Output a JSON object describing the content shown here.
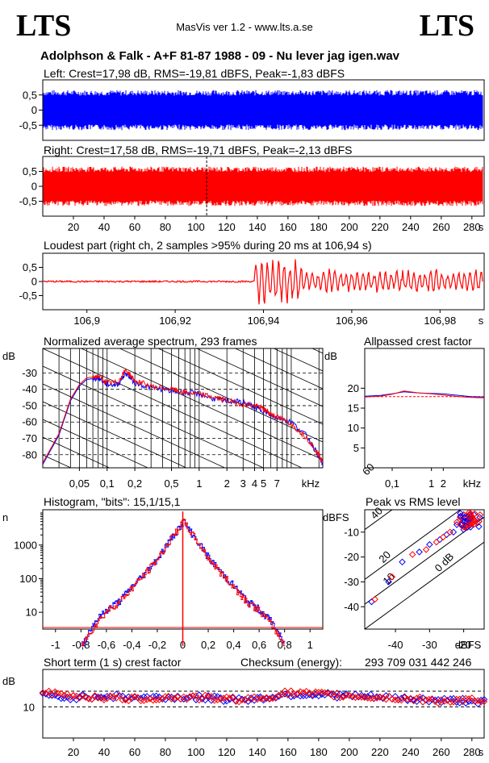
{
  "header": {
    "logo_left": "LTS",
    "logo_right": "LTS",
    "app_title": "MasVis ver 1.2 - www.lts.a.se",
    "file_title": "Adolphson & Falk - A+F 81-87 1988 - 09 - Nu lever jag igen.wav"
  },
  "colors": {
    "left": "#0000ff",
    "right": "#ff0000",
    "axis": "#000000"
  },
  "chart_data": [
    {
      "type": "area",
      "id": "left-waveform",
      "title": "Left: Crest=17,98 dB, RMS=-19,81 dBFS, Peak=-1,83 dBFS",
      "ylim": [
        -1,
        1
      ],
      "yticks": [
        "0,5",
        "0",
        "-0,5"
      ],
      "ytick_values": [
        0.5,
        0,
        -0.5
      ],
      "xlim": [
        0,
        288
      ],
      "color": "#0000ff"
    },
    {
      "type": "area",
      "id": "right-waveform",
      "title": "Right: Crest=17,58 dB, RMS=-19,71 dBFS, Peak=-2,13 dBFS",
      "ylim": [
        -1,
        1
      ],
      "yticks": [
        "0,5",
        "0",
        "-0,5"
      ],
      "ytick_values": [
        0.5,
        0,
        -0.5
      ],
      "xlim": [
        0,
        288
      ],
      "marker_x": 106.94,
      "xticks": [
        "20",
        "40",
        "60",
        "80",
        "100",
        "120",
        "140",
        "160",
        "180",
        "200",
        "220",
        "240",
        "260",
        "280",
        "s"
      ],
      "xtick_values": [
        20,
        40,
        60,
        80,
        100,
        120,
        140,
        160,
        180,
        200,
        220,
        240,
        260,
        280
      ],
      "color": "#ff0000"
    },
    {
      "type": "line",
      "id": "loudest-part",
      "title": "Loudest part (right ch, 2 samples >95% during 20 ms at 106,94 s)",
      "xlim": [
        106.89,
        106.99
      ],
      "ylim": [
        -1,
        1
      ],
      "yticks": [
        "0,5",
        "0",
        "-0,5"
      ],
      "ytick_values": [
        0.5,
        0,
        -0.5
      ],
      "xticks": [
        "106,9",
        "106,92",
        "106,94",
        "106,96",
        "106,98",
        "s"
      ],
      "xtick_values": [
        106.9,
        106.92,
        106.94,
        106.96,
        106.98
      ],
      "onset_x": 106.938,
      "color": "#ff0000"
    },
    {
      "type": "line",
      "id": "spectrum",
      "title": "Normalized average spectrum, 293 frames",
      "ylabel": "dB",
      "yticks": [
        "-30",
        "-40",
        "-50",
        "-60",
        "-70",
        "-80"
      ],
      "ytick_values": [
        -30,
        -40,
        -50,
        -60,
        -70,
        -80
      ],
      "ylim": [
        -88,
        -15
      ],
      "xlim_khz": [
        0.02,
        22
      ],
      "xticks": [
        "0,05",
        "0,1",
        "0,2",
        "0,5",
        "1",
        "2",
        "3",
        "4",
        "5",
        "7",
        "kHz"
      ],
      "xtick_values": [
        0.05,
        0.1,
        0.2,
        0.5,
        1,
        2,
        3,
        4,
        5,
        7
      ],
      "series": [
        {
          "color": "#0000ff",
          "x": [
            0.02,
            0.03,
            0.04,
            0.05,
            0.06,
            0.08,
            0.1,
            0.13,
            0.16,
            0.2,
            0.3,
            0.5,
            0.7,
            1,
            1.5,
            2,
            3,
            4,
            5,
            6,
            7,
            10,
            15,
            20,
            22
          ],
          "y": [
            -86,
            -68,
            -47,
            -38,
            -34,
            -33,
            -37,
            -37,
            -30,
            -36,
            -39,
            -41,
            -42,
            -43,
            -46,
            -47,
            -48,
            -51,
            -53,
            -56,
            -57,
            -60,
            -69,
            -81,
            -86
          ]
        },
        {
          "color": "#ff0000",
          "x": [
            0.02,
            0.03,
            0.04,
            0.05,
            0.06,
            0.08,
            0.1,
            0.13,
            0.16,
            0.2,
            0.3,
            0.5,
            0.7,
            1,
            1.5,
            2,
            3,
            4,
            5,
            6,
            7,
            10,
            15,
            20,
            22
          ],
          "y": [
            -85,
            -67,
            -46,
            -37,
            -33,
            -32,
            -36,
            -36,
            -28,
            -35,
            -38,
            -40,
            -42,
            -43,
            -45,
            -47,
            -49,
            -50,
            -52,
            -55,
            -57,
            -61,
            -70,
            -80,
            -85
          ]
        }
      ]
    },
    {
      "type": "line",
      "id": "allpass-crest",
      "title": "Allpassed crest factor",
      "ylabel": "dB",
      "yticks": [
        "20",
        "15",
        "10",
        "5"
      ],
      "ytick_values": [
        20,
        15,
        10,
        5
      ],
      "ylim": [
        0,
        30
      ],
      "xticks": [
        "0,1",
        "1",
        "2",
        "kHz"
      ],
      "xtick_values": [
        0.1,
        1,
        2
      ],
      "xlim_khz": [
        0.02,
        22
      ],
      "series": [
        {
          "color": "#0000ff",
          "x": [
            0.02,
            0.05,
            0.1,
            0.2,
            0.5,
            1,
            2,
            5,
            10,
            22
          ],
          "y": [
            18,
            18.2,
            18.6,
            19.1,
            18.8,
            18.7,
            18.6,
            18.2,
            17.9,
            17.8
          ]
        },
        {
          "color": "#ff0000",
          "x": [
            0.02,
            0.05,
            0.1,
            0.2,
            0.5,
            1,
            2,
            5,
            10,
            22
          ],
          "y": [
            17.8,
            18,
            18.5,
            19.3,
            18.8,
            18.6,
            18.3,
            17.9,
            17.7,
            17.6
          ]
        }
      ],
      "reference_line": 17.9
    },
    {
      "type": "line",
      "id": "histogram",
      "title": "Histogram, \"bits\": 15,1/15,1",
      "ylabel": "n",
      "scale": "log",
      "yticks": [
        "1000",
        "100",
        "10"
      ],
      "ytick_values": [
        1000,
        100,
        10
      ],
      "ylim_log": [
        0.5,
        4.05
      ],
      "xlim": [
        -1.1,
        1.1
      ],
      "xticks": [
        "-1",
        "-0,8",
        "-0,6",
        "-0,4",
        "-0,2",
        "0",
        "0,2",
        "0,4",
        "0,6",
        "0,8",
        "1"
      ],
      "xtick_values": [
        -1,
        -0.8,
        -0.6,
        -0.4,
        -0.2,
        0,
        0.2,
        0.4,
        0.6,
        0.8,
        1
      ],
      "series": [
        {
          "color": "#0000ff",
          "x": [
            -0.8,
            -0.7,
            -0.6,
            -0.5,
            -0.4,
            -0.3,
            -0.2,
            -0.1,
            0,
            0.1,
            0.2,
            0.3,
            0.4,
            0.5,
            0.6,
            0.7,
            0.8
          ],
          "y": [
            1,
            5,
            12,
            22,
            60,
            150,
            420,
            1500,
            5000,
            1500,
            420,
            150,
            60,
            22,
            12,
            5,
            1
          ]
        },
        {
          "color": "#ff0000",
          "x": [
            -0.8,
            -0.7,
            -0.6,
            -0.5,
            -0.4,
            -0.3,
            -0.2,
            -0.1,
            0,
            0.1,
            0.2,
            0.3,
            0.4,
            0.5,
            0.6,
            0.7,
            0.8
          ],
          "y": [
            1,
            4,
            11,
            21,
            55,
            140,
            400,
            1450,
            5200,
            1450,
            400,
            140,
            55,
            21,
            11,
            4,
            1
          ]
        }
      ],
      "peak_spike": 10000
    },
    {
      "type": "scatter",
      "id": "peak-vs-rms",
      "title": "Peak vs RMS level",
      "ylabel": "dBFS",
      "xlabel": "dBFS",
      "yticks": [
        "-10",
        "-20",
        "-30",
        "-40"
      ],
      "ytick_values": [
        -10,
        -20,
        -30,
        -40
      ],
      "xticks": [
        "-40",
        "-30",
        "-20"
      ],
      "xtick_values": [
        -40,
        -30,
        -20
      ],
      "xlim": [
        -49,
        -14
      ],
      "ylim": [
        -49,
        -1
      ],
      "diagonals": [
        "60",
        "40",
        "20",
        "10",
        "0 dB"
      ],
      "diagonal_offsets": [
        60,
        40,
        20,
        10,
        0
      ],
      "series": [
        {
          "color": "#0000ff",
          "x": [
            -20,
            -19,
            -18,
            -19,
            -21,
            -22,
            -17,
            -18,
            -20,
            -23,
            -25,
            -27,
            -30,
            -33,
            -38,
            -42,
            -47
          ],
          "y": [
            -3,
            -4,
            -5,
            -6,
            -4,
            -7,
            -3,
            -8,
            -9,
            -10,
            -11,
            -13,
            -15,
            -18,
            -22,
            -30,
            -38
          ]
        },
        {
          "color": "#ff0000",
          "x": [
            -20,
            -19,
            -18,
            -17,
            -21,
            -22,
            -18,
            -19,
            -20,
            -21,
            -24,
            -26,
            -28,
            -31,
            -35,
            -41,
            -46
          ],
          "y": [
            -3,
            -4,
            -5,
            -5,
            -5,
            -6,
            -7,
            -8,
            -3,
            -4,
            -10,
            -12,
            -14,
            -17,
            -19,
            -28,
            -37
          ]
        }
      ]
    },
    {
      "type": "scatter",
      "id": "short-term-crest",
      "title": "Short term (1 s) crest factor",
      "ylabel": "dB",
      "yticks": [
        "10"
      ],
      "ytick_values": [
        10
      ],
      "ylim": [
        0,
        22
      ],
      "xlim": [
        0,
        288
      ],
      "xticks": [
        "20",
        "40",
        "60",
        "80",
        "100",
        "120",
        "140",
        "160",
        "180",
        "200",
        "220",
        "240",
        "260",
        "280",
        "s"
      ],
      "xtick_values": [
        20,
        40,
        60,
        80,
        100,
        120,
        140,
        160,
        180,
        200,
        220,
        240,
        260,
        280
      ],
      "dashed_lines": [
        15,
        10
      ],
      "series": [
        {
          "color": "#0000ff",
          "x": [
            0,
            20,
            40,
            60,
            80,
            100,
            120,
            140,
            160,
            180,
            200,
            220,
            240,
            260,
            280,
            288
          ],
          "y": [
            13.5,
            13,
            13.5,
            13,
            13,
            13,
            12.5,
            12.5,
            14,
            14,
            13.5,
            13,
            12.5,
            12,
            12,
            11.5
          ]
        },
        {
          "color": "#ff0000",
          "x": [
            0,
            20,
            40,
            60,
            80,
            100,
            120,
            140,
            160,
            180,
            200,
            220,
            240,
            260,
            280,
            288
          ],
          "y": [
            14.5,
            13.5,
            13,
            12.5,
            13,
            13,
            12.5,
            12.5,
            14.5,
            14,
            13.5,
            13,
            12.5,
            12,
            12,
            11
          ]
        }
      ]
    }
  ],
  "checksum": {
    "label": "Checksum (energy):",
    "value": "293 709 031 442 246"
  }
}
